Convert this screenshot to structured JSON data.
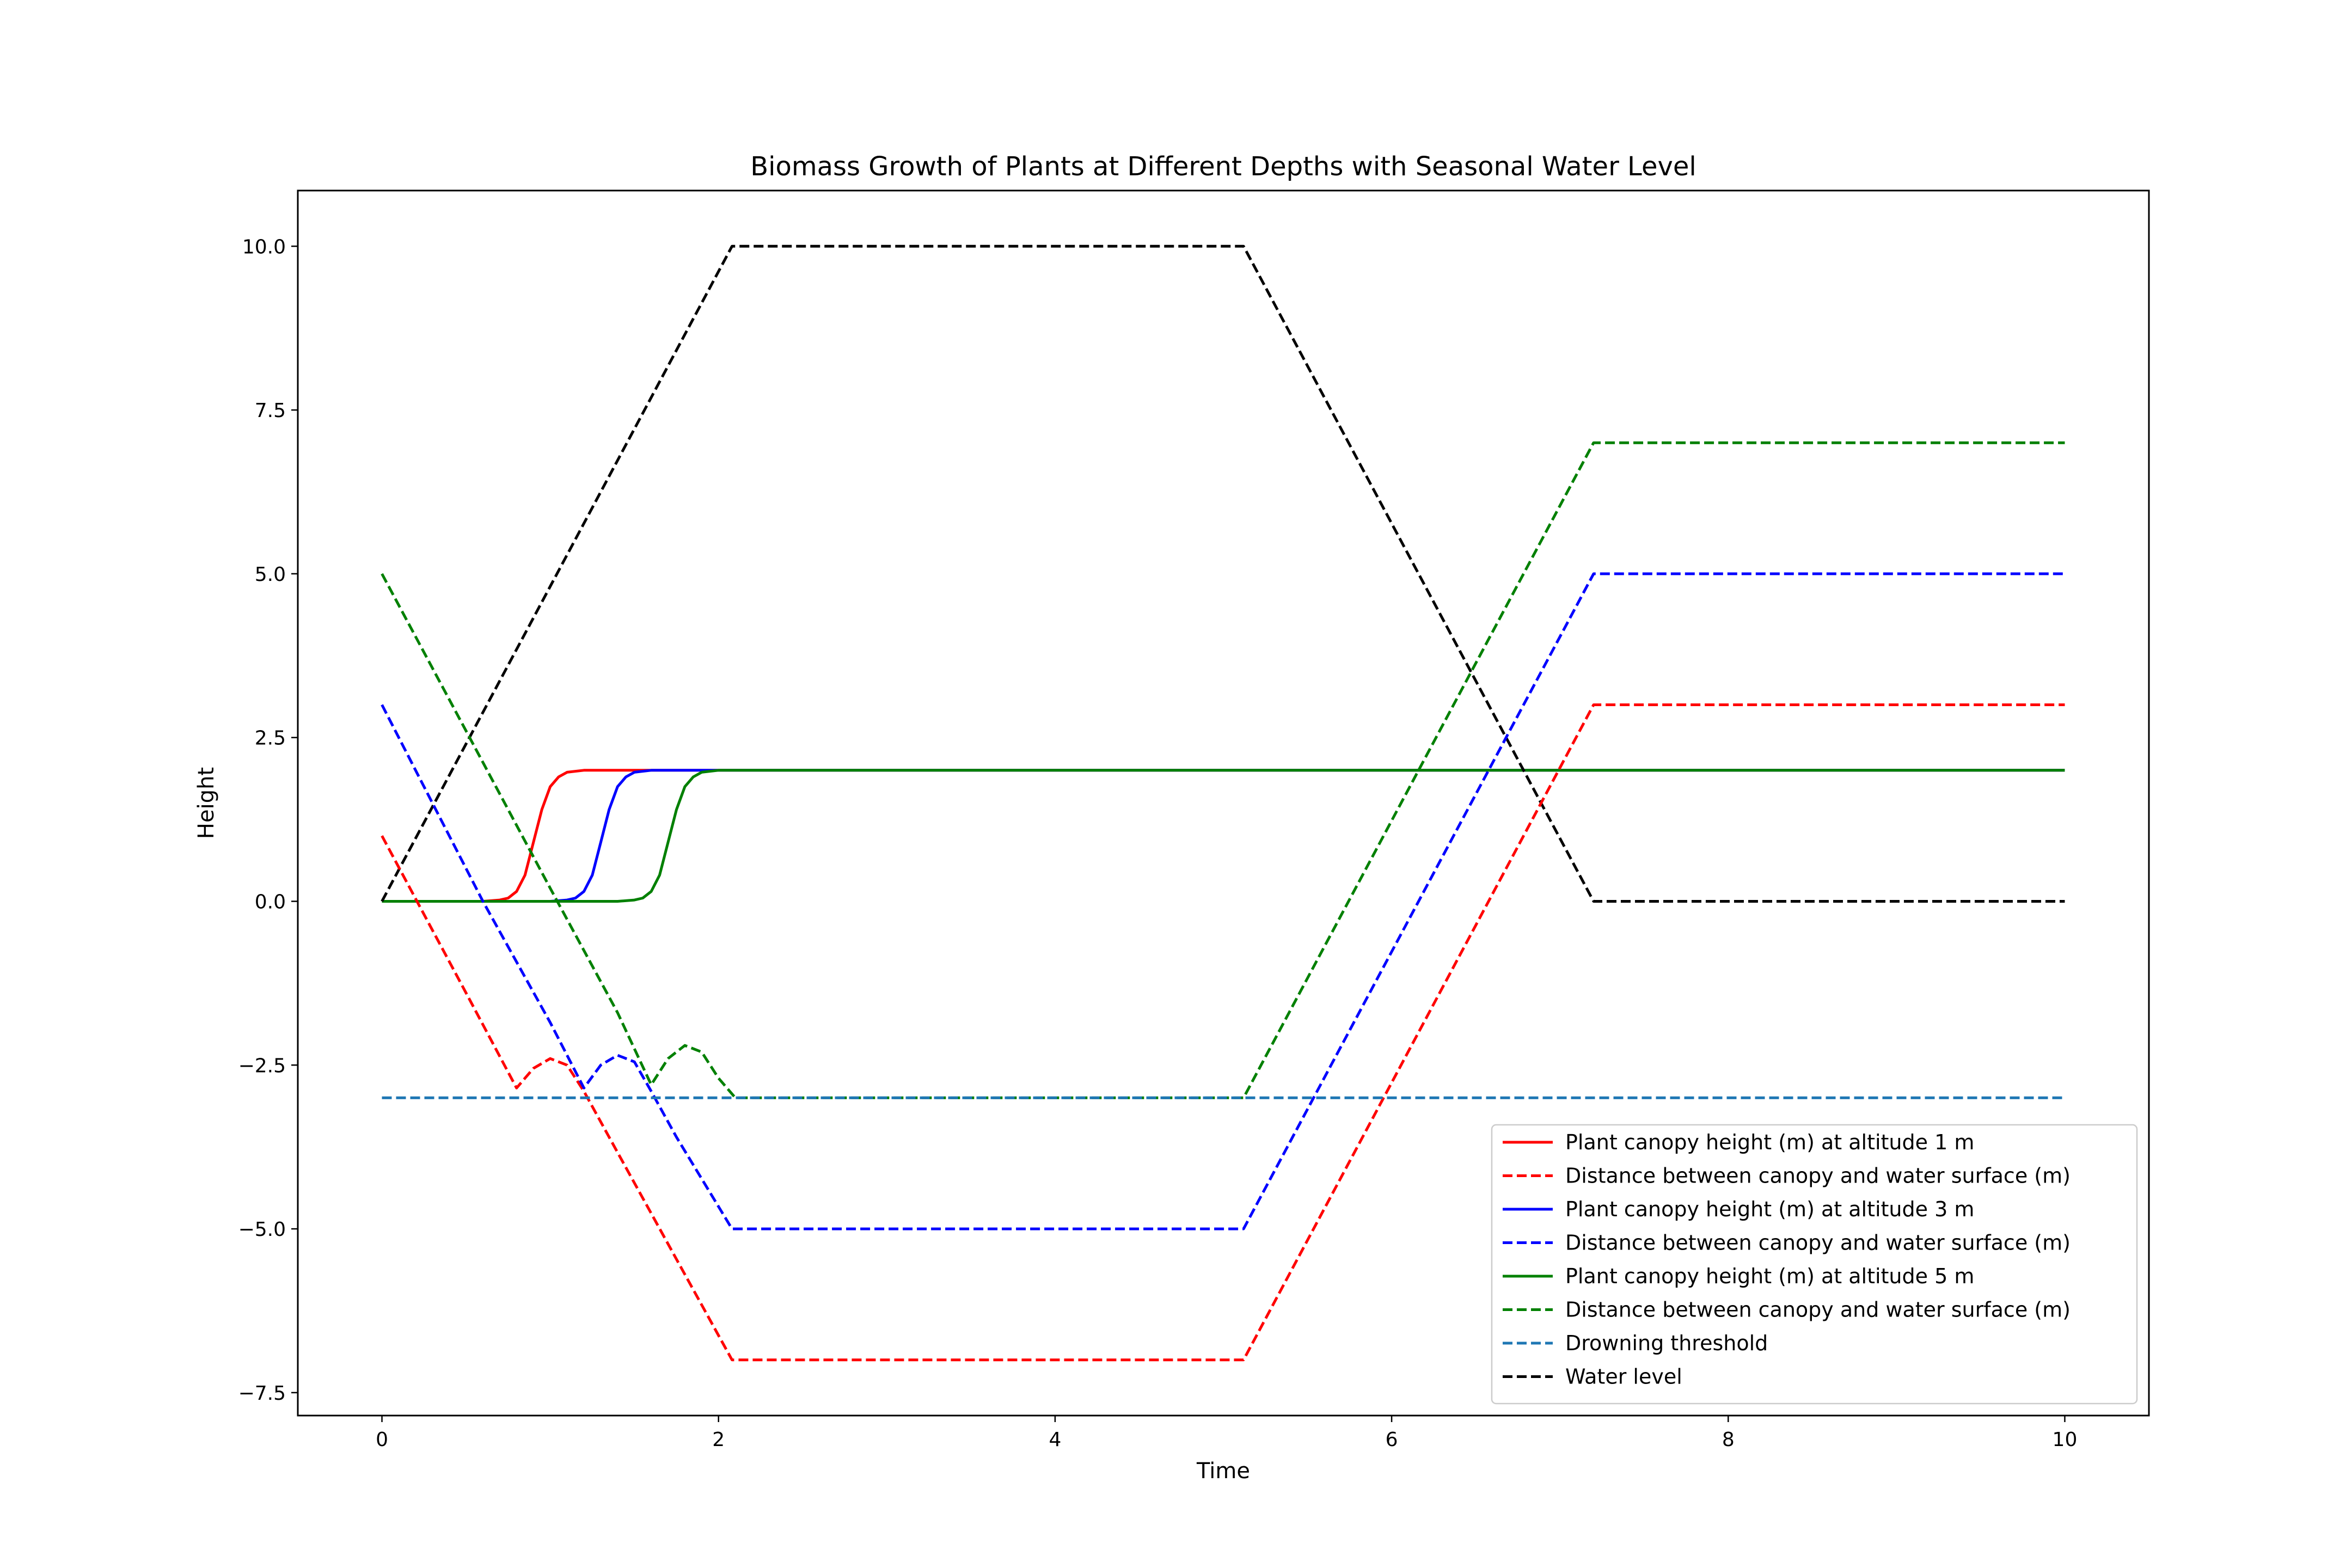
{
  "chart_data": {
    "type": "line",
    "title": "Biomass Growth of Plants at Different Depths with Seasonal Water Level",
    "xlabel": "Time",
    "ylabel": "Height",
    "xlim": [
      -0.5,
      10.5
    ],
    "ylim": [
      -7.85,
      10.85
    ],
    "xticks": [
      0,
      2,
      4,
      6,
      8,
      10
    ],
    "xtick_labels": [
      "0",
      "2",
      "4",
      "6",
      "8",
      "10"
    ],
    "yticks": [
      -7.5,
      -5.0,
      -2.5,
      0.0,
      2.5,
      5.0,
      7.5,
      10.0
    ],
    "ytick_labels": [
      "−7.5",
      "−5.0",
      "−2.5",
      "0.0",
      "2.5",
      "5.0",
      "7.5",
      "10.0"
    ],
    "grid": false,
    "legend_position": "lower-right",
    "series": [
      {
        "name": "Plant canopy height (m) at altitude 1 m",
        "color": "#ff0000",
        "dash": "solid",
        "x": [
          0,
          0.6,
          0.7,
          0.75,
          0.8,
          0.85,
          0.9,
          0.95,
          1.0,
          1.05,
          1.1,
          1.2,
          1.3,
          10
        ],
        "y": [
          0,
          0,
          0.02,
          0.05,
          0.15,
          0.4,
          0.9,
          1.4,
          1.75,
          1.9,
          1.97,
          2.0,
          2.0,
          2.0
        ]
      },
      {
        "name": "Distance between canopy and water surface (m)",
        "color": "#ff0000",
        "dash": "dashed",
        "x": [
          0,
          0.5,
          0.8,
          0.9,
          1.0,
          1.1,
          1.2,
          1.35,
          2.08,
          5.12,
          7.2,
          10
        ],
        "y": [
          1,
          -1.4,
          -2.85,
          -2.55,
          -2.4,
          -2.5,
          -2.9,
          -3.6,
          -7,
          -7,
          3,
          3
        ]
      },
      {
        "name": "Plant canopy height (m) at altitude 3 m",
        "color": "#0000ff",
        "dash": "solid",
        "x": [
          0,
          1.0,
          1.1,
          1.15,
          1.2,
          1.25,
          1.3,
          1.35,
          1.4,
          1.45,
          1.5,
          1.6,
          1.7,
          10
        ],
        "y": [
          0,
          0,
          0.02,
          0.05,
          0.15,
          0.4,
          0.9,
          1.4,
          1.75,
          1.9,
          1.97,
          2.0,
          2.0,
          2.0
        ]
      },
      {
        "name": "Distance between canopy and water surface (m)",
        "color": "#0000ff",
        "dash": "dashed",
        "x": [
          0,
          0.6,
          1.0,
          1.2,
          1.3,
          1.4,
          1.5,
          1.6,
          1.75,
          2.08,
          5.12,
          7.2,
          10
        ],
        "y": [
          3,
          0,
          -1.85,
          -2.85,
          -2.5,
          -2.35,
          -2.45,
          -2.9,
          -3.6,
          -5,
          -5,
          5,
          5
        ]
      },
      {
        "name": "Plant canopy height (m) at altitude 5 m",
        "color": "#008000",
        "dash": "solid",
        "x": [
          0,
          1.4,
          1.5,
          1.55,
          1.6,
          1.65,
          1.7,
          1.75,
          1.8,
          1.85,
          1.9,
          2.0,
          2.1,
          10
        ],
        "y": [
          0,
          0,
          0.02,
          0.05,
          0.15,
          0.4,
          0.9,
          1.4,
          1.75,
          1.9,
          1.97,
          2.0,
          2.0,
          2.0
        ]
      },
      {
        "name": "Distance between canopy and water surface (m)",
        "color": "#008000",
        "dash": "dashed",
        "x": [
          0,
          0.5,
          1.0,
          1.4,
          1.6,
          1.7,
          1.8,
          1.9,
          2.0,
          2.1,
          5.12,
          7.2,
          10
        ],
        "y": [
          5,
          2.6,
          0.2,
          -1.7,
          -2.8,
          -2.4,
          -2.2,
          -2.3,
          -2.7,
          -3,
          -3,
          7,
          7
        ]
      },
      {
        "name": "Drowning threshold",
        "color": "#1f77b4",
        "dash": "dashed",
        "x": [
          0,
          10
        ],
        "y": [
          -3,
          -3
        ]
      },
      {
        "name": "Water level",
        "color": "#000000",
        "dash": "dashed",
        "x": [
          0,
          2.08,
          5.12,
          7.2,
          10
        ],
        "y": [
          0,
          10,
          10,
          0,
          0
        ]
      }
    ]
  }
}
